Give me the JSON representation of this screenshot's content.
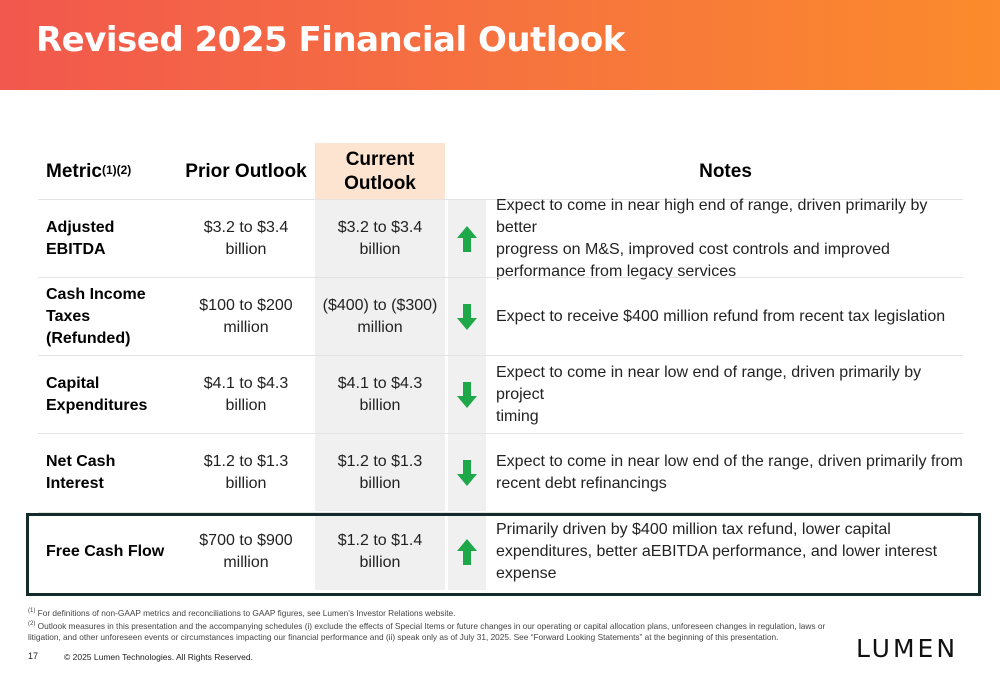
{
  "title": "Revised 2025 Financial Outlook",
  "header": {
    "metric": "Metric",
    "metric_sup": "(1)(2)",
    "prior": "Prior Outlook",
    "current_line1": "Current",
    "current_line2": "Outlook",
    "notes": "Notes"
  },
  "rows": [
    {
      "metric_line1": "Adjusted EBITDA",
      "metric_line2": "",
      "prior_line1": "$3.2 to $3.4",
      "prior_line2": "billion",
      "current_line1": "$3.2 to $3.4",
      "current_line2": "billion",
      "direction": "up",
      "note_lines": [
        "Expect to come in near high end of range, driven primarily by better",
        "progress on M&S, improved cost controls and improved",
        "performance from legacy services"
      ]
    },
    {
      "metric_line1": "Cash Income",
      "metric_line2": "Taxes (Refunded)",
      "prior_line1": "$100 to $200",
      "prior_line2": "million",
      "current_line1": "($400) to ($300)",
      "current_line2": "million",
      "direction": "down",
      "note_lines": [
        "Expect to receive $400 million refund from recent tax legislation"
      ]
    },
    {
      "metric_line1": "Capital",
      "metric_line2": "Expenditures",
      "prior_line1": "$4.1 to $4.3",
      "prior_line2": "billion",
      "current_line1": "$4.1 to $4.3",
      "current_line2": "billion",
      "direction": "down",
      "note_lines": [
        "Expect to come in near low end of range, driven primarily by project",
        "timing"
      ]
    },
    {
      "metric_line1": "Net Cash Interest",
      "metric_line2": "",
      "prior_line1": "$1.2 to $1.3",
      "prior_line2": "billion",
      "current_line1": "$1.2 to $1.3",
      "current_line2": "billion",
      "direction": "down",
      "note_lines": [
        "Expect to come in near low end of the range, driven primarily from",
        "recent debt refinancings"
      ]
    },
    {
      "metric_line1": "Free Cash Flow",
      "metric_line2": "",
      "prior_line1": "$700 to $900",
      "prior_line2": "million",
      "current_line1": "$1.2 to $1.4",
      "current_line2": "billion",
      "direction": "up",
      "note_lines": [
        "Primarily driven by $400 million tax refund, lower capital",
        "expenditures, better aEBITDA performance, and lower interest",
        "expense"
      ]
    }
  ],
  "footnotes": {
    "fn1_mark": "(1)",
    "fn1": "For definitions of non-GAAP metrics and reconciliations to GAAP figures, see Lumen’s Investor Relations website.",
    "fn2_mark": "(2)",
    "fn2_line1": "Outlook measures in this presentation and the accompanying schedules (i) exclude the effects of Special Items or future changes in our operating or capital allocation plans, unforeseen changes in regulation, laws or",
    "fn2_line2": "litigation, and other unforeseen events or circumstances impacting our financial performance and (ii) speak only as of July 31, 2025. See “Forward Looking Statements” at the beginning of this presentation."
  },
  "page_number": "17",
  "copyright": "© 2025 Lumen Technologies. All Rights Reserved.",
  "logo_text": "LUMEN",
  "colors": {
    "banner_start": "#f2584d",
    "banner_end": "#fb8b2c",
    "arrow_green": "#1fa84a",
    "current_header_bg": "#fde4d0",
    "current_column_bg": "#f0f0f0",
    "highlight_frame": "#132b2a"
  },
  "icons": {
    "up": "arrow-up-icon",
    "down": "arrow-down-icon"
  }
}
